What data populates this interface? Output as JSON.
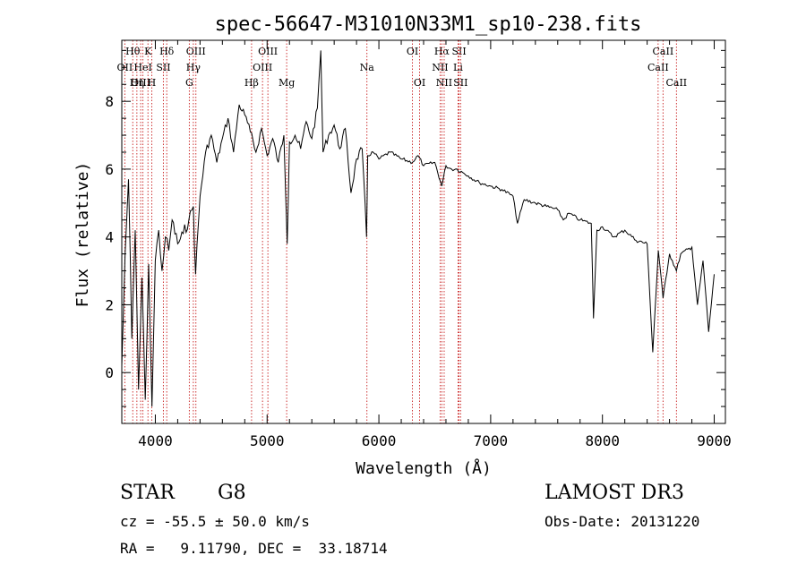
{
  "chart_data": {
    "type": "line",
    "title": "spec-56647-M31010N33M1_sp10-238.fits",
    "xlabel": "Wavelength (Å)",
    "ylabel": "Flux (relative)",
    "xlim": [
      3700,
      9100
    ],
    "ylim": [
      -1.5,
      9.8
    ],
    "xticks": [
      4000,
      5000,
      6000,
      7000,
      8000,
      9000
    ],
    "yticks": [
      0,
      2,
      4,
      6,
      8
    ],
    "grid": false,
    "series": [
      {
        "name": "flux",
        "x": [
          3700,
          3730,
          3760,
          3790,
          3820,
          3850,
          3880,
          3910,
          3940,
          3970,
          4000,
          4030,
          4060,
          4090,
          4120,
          4150,
          4200,
          4250,
          4300,
          4340,
          4360,
          4400,
          4450,
          4500,
          4550,
          4600,
          4650,
          4700,
          4750,
          4800,
          4850,
          4900,
          4950,
          5000,
          5050,
          5100,
          5150,
          5180,
          5200,
          5250,
          5300,
          5350,
          5400,
          5450,
          5480,
          5500,
          5550,
          5600,
          5650,
          5700,
          5750,
          5800,
          5850,
          5890,
          5900,
          5950,
          6000,
          6100,
          6200,
          6300,
          6350,
          6400,
          6500,
          6563,
          6600,
          6650,
          6700,
          6750,
          6800,
          6900,
          7000,
          7100,
          7200,
          7240,
          7300,
          7400,
          7500,
          7600,
          7650,
          7700,
          7800,
          7900,
          7920,
          7950,
          8000,
          8100,
          8200,
          8300,
          8400,
          8450,
          8500,
          8542,
          8600,
          8662,
          8700,
          8800,
          8850,
          8900,
          8950,
          9000
        ],
        "y": [
          0.2,
          3.5,
          5.7,
          1.0,
          4.2,
          -0.5,
          2.8,
          -0.8,
          3.2,
          -1.0,
          3.3,
          4.2,
          3.0,
          4.0,
          3.6,
          4.5,
          3.8,
          4.1,
          4.5,
          4.9,
          2.9,
          5.2,
          6.5,
          7.0,
          6.2,
          6.9,
          7.5,
          6.5,
          7.9,
          7.6,
          7.1,
          6.5,
          7.2,
          6.4,
          6.9,
          6.2,
          7.0,
          3.8,
          6.8,
          7.0,
          6.6,
          7.4,
          6.9,
          7.8,
          9.5,
          6.5,
          7.0,
          7.3,
          6.6,
          7.2,
          5.3,
          6.3,
          6.6,
          4.0,
          6.4,
          6.5,
          6.3,
          6.5,
          6.3,
          6.2,
          6.4,
          6.1,
          6.2,
          5.5,
          6.1,
          6.0,
          6.0,
          5.9,
          5.8,
          5.6,
          5.5,
          5.4,
          5.2,
          4.4,
          5.1,
          5.0,
          4.9,
          4.8,
          4.5,
          4.7,
          4.5,
          4.4,
          1.6,
          4.2,
          4.3,
          4.0,
          4.2,
          3.9,
          3.8,
          0.6,
          3.6,
          2.2,
          3.5,
          3.0,
          3.5,
          3.7,
          2.0,
          3.3,
          1.2,
          2.9
        ]
      }
    ],
    "lines": [
      {
        "label": "Hθ",
        "x": 3798,
        "row": 0
      },
      {
        "label": "OII",
        "x": 3727,
        "row": 1
      },
      {
        "label": "OIII",
        "x": 3869,
        "row": 2
      },
      {
        "label": "HeI",
        "x": 3889,
        "row": 1
      },
      {
        "label": "K",
        "x": 3934,
        "row": 0
      },
      {
        "label": "Hη",
        "x": 3835,
        "row": 2
      },
      {
        "label": "H",
        "x": 3968,
        "row": 2
      },
      {
        "label": "SII",
        "x": 4072,
        "row": 1
      },
      {
        "label": "Hδ",
        "x": 4102,
        "row": 0
      },
      {
        "label": "OIII",
        "x": 4363,
        "row": 0
      },
      {
        "label": "Hγ",
        "x": 4340,
        "row": 1
      },
      {
        "label": "G",
        "x": 4304,
        "row": 2
      },
      {
        "label": "Hβ",
        "x": 4861,
        "row": 2
      },
      {
        "label": "OIII",
        "x": 5007,
        "row": 0
      },
      {
        "label": "OIII",
        "x": 4959,
        "row": 1
      },
      {
        "label": "Mg",
        "x": 5175,
        "row": 2
      },
      {
        "label": "Na",
        "x": 5893,
        "row": 1
      },
      {
        "label": "OI",
        "x": 6300,
        "row": 0
      },
      {
        "label": "OI",
        "x": 6364,
        "row": 2
      },
      {
        "label": "Hα",
        "x": 6563,
        "row": 0
      },
      {
        "label": "NII",
        "x": 6548,
        "row": 1
      },
      {
        "label": "NII",
        "x": 6584,
        "row": 2
      },
      {
        "label": "SII",
        "x": 6717,
        "row": 0
      },
      {
        "label": "Li",
        "x": 6708,
        "row": 1
      },
      {
        "label": "SII",
        "x": 6731,
        "row": 2
      },
      {
        "label": "CaII",
        "x": 8542,
        "row": 0
      },
      {
        "label": "CaII",
        "x": 8498,
        "row": 1
      },
      {
        "label": "CaII",
        "x": 8662,
        "row": 2
      }
    ]
  },
  "info": {
    "object_class": "STAR",
    "subclass": "G8",
    "survey": "LAMOST DR3",
    "velocity": "cz = -55.5 ± 50.0 km/s",
    "obs_date": "Obs-Date: 20131220",
    "coords": "RA =   9.11790, DEC =  33.18714"
  }
}
